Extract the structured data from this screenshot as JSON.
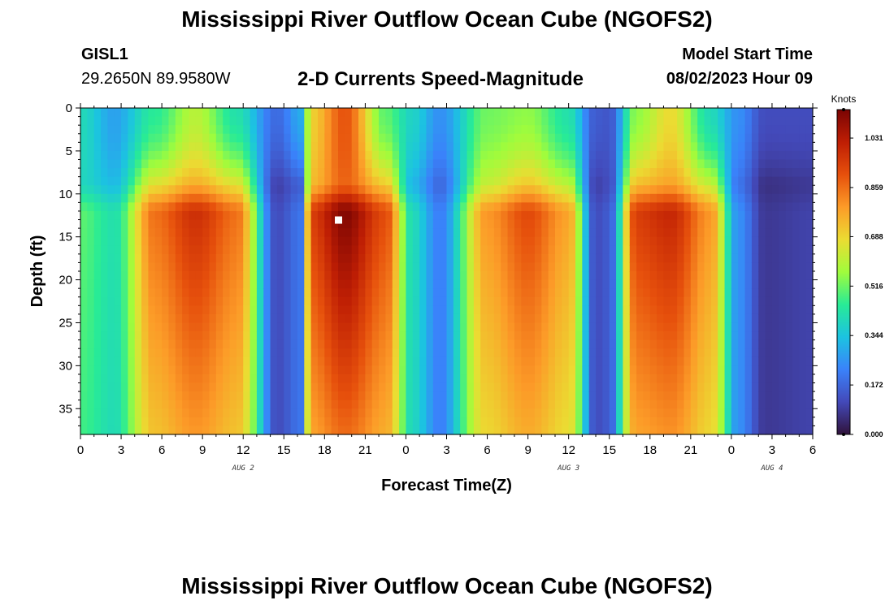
{
  "page": {
    "title": "Mississippi River Outflow Ocean Cube (NGOFS2)",
    "station_id": "GISL1",
    "station_coords": "29.2650N  89.9580W",
    "subtitle": "2-D Currents Speed-Magnitude",
    "start_label": "Model Start Time",
    "start_value": "08/02/2023 Hour 09",
    "footer_title": "Mississippi River Outflow Ocean Cube (NGOFS2)"
  },
  "chart_data": {
    "type": "heatmap",
    "title": "2-D Currents Speed-Magnitude",
    "xlabel": "Forecast Time(Z)",
    "ylabel": "Depth (ft)",
    "x_ticks": [
      "0",
      "3",
      "6",
      "9",
      "12",
      "15",
      "18",
      "21",
      "0",
      "3",
      "6",
      "9",
      "12",
      "15",
      "18",
      "21",
      "0",
      "3",
      "6"
    ],
    "x_range_hours": [
      0,
      54
    ],
    "day_labels": [
      {
        "label": "AUG 2",
        "hour": 12
      },
      {
        "label": "AUG 3",
        "hour": 36
      },
      {
        "label": "AUG 4",
        "hour": 51
      }
    ],
    "y_ticks": [
      0,
      5,
      10,
      15,
      20,
      25,
      30,
      35
    ],
    "y_range_ft": [
      0,
      38
    ],
    "y_inverted": true,
    "colorbar": {
      "unit": "Knots",
      "min": 0.0,
      "max": 1.13,
      "ticks": [
        "0.000",
        "0.172",
        "0.344",
        "0.516",
        "0.688",
        "0.859",
        "1.031"
      ]
    },
    "marker": {
      "hour": 19,
      "depth_ft": 13,
      "color": "#ffffff"
    },
    "speed_profile": [
      {
        "hour": 0,
        "deep": 0.5,
        "surface": 0.4
      },
      {
        "hour": 2.5,
        "deep": 0.42,
        "surface": 0.28
      },
      {
        "hour": 5.5,
        "deep": 0.86,
        "surface": 0.45
      },
      {
        "hour": 8.5,
        "deep": 0.98,
        "surface": 0.6
      },
      {
        "hour": 11.5,
        "deep": 0.86,
        "surface": 0.42
      },
      {
        "hour": 14.5,
        "deep": 0.12,
        "surface": 0.18
      },
      {
        "hour": 16.3,
        "deep": 0.2,
        "surface": 0.3
      },
      {
        "hour": 17.0,
        "deep": 0.95,
        "surface": 0.7
      },
      {
        "hour": 19.5,
        "deep": 1.12,
        "surface": 0.9
      },
      {
        "hour": 22.5,
        "deep": 0.92,
        "surface": 0.5
      },
      {
        "hour": 24.5,
        "deep": 0.4,
        "surface": 0.38
      },
      {
        "hour": 26.5,
        "deep": 0.22,
        "surface": 0.25
      },
      {
        "hour": 30.0,
        "deep": 0.8,
        "surface": 0.52
      },
      {
        "hour": 33.0,
        "deep": 0.92,
        "surface": 0.55
      },
      {
        "hour": 36.0,
        "deep": 0.78,
        "surface": 0.42
      },
      {
        "hour": 38.0,
        "deep": 0.12,
        "surface": 0.15
      },
      {
        "hour": 39.0,
        "deep": 0.15,
        "surface": 0.14
      },
      {
        "hour": 41.0,
        "deep": 0.95,
        "surface": 0.55
      },
      {
        "hour": 43.5,
        "deep": 1.0,
        "surface": 0.68
      },
      {
        "hour": 46.5,
        "deep": 0.8,
        "surface": 0.4
      },
      {
        "hour": 48.5,
        "deep": 0.25,
        "surface": 0.25
      },
      {
        "hour": 50.5,
        "deep": 0.08,
        "surface": 0.12
      },
      {
        "hour": 54.0,
        "deep": 0.1,
        "surface": 0.12
      }
    ]
  }
}
